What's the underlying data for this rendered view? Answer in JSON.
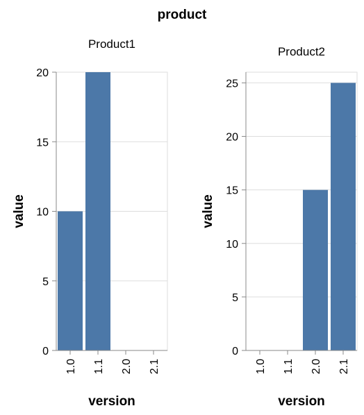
{
  "chart_data": {
    "type": "bar",
    "facet_header": "product",
    "xlabel": "version",
    "ylabel": "value",
    "categories": [
      "1.0",
      "1.1",
      "2.0",
      "2.1"
    ],
    "bar_color": "#4c78a8",
    "grid": true,
    "panels": [
      {
        "title": "Product1",
        "values": [
          10,
          20,
          null,
          null
        ],
        "ylim": [
          0,
          20
        ],
        "yticks": [
          0,
          5,
          10,
          15,
          20
        ]
      },
      {
        "title": "Product2",
        "values": [
          null,
          null,
          15,
          25
        ],
        "ylim": [
          0,
          26
        ],
        "yticks": [
          0,
          5,
          10,
          15,
          20,
          25
        ]
      }
    ]
  }
}
